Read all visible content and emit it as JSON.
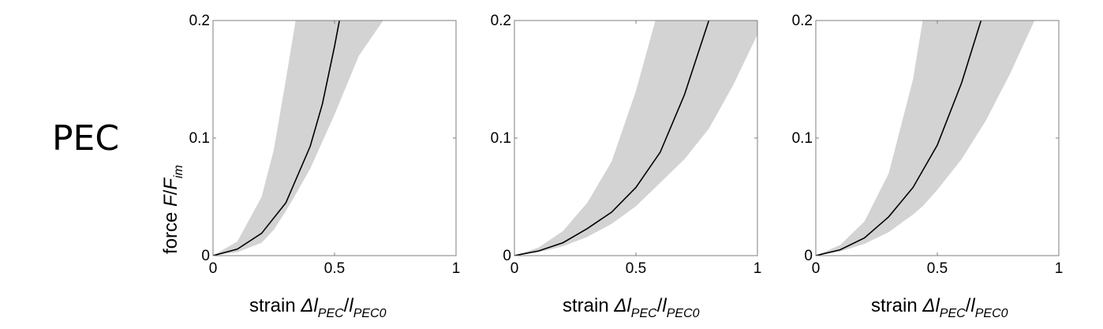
{
  "row_label": "PEC",
  "ylabel": {
    "prefix": "force ",
    "var": "F",
    "slash": "/",
    "var2": "F",
    "sub": "im"
  },
  "xlabel": {
    "prefix": "strain ",
    "var": "Δl",
    "sub": "PEC",
    "slash": "/",
    "var2": "l",
    "sub2": "PEC0"
  },
  "chart_data": [
    {
      "type": "line",
      "xlim": [
        0,
        1
      ],
      "ylim": [
        0,
        0.2
      ],
      "xticks": [
        "0",
        "0.5",
        "1"
      ],
      "yticks": [
        "0",
        "0.1",
        "0.2"
      ],
      "band_color": "#d3d3d3",
      "line_color": "#000000",
      "series": [
        {
          "x": [
            0,
            0.1,
            0.2,
            0.3,
            0.4,
            0.45,
            0.5,
            0.52
          ],
          "values": [
            0,
            0.0055,
            0.019,
            0.045,
            0.093,
            0.129,
            0.178,
            0.2
          ]
        }
      ],
      "band": {
        "x": [
          0,
          0.1,
          0.2,
          0.25,
          0.3,
          0.34,
          0.4,
          0.5,
          0.6,
          0.65,
          0.7
        ],
        "upper": [
          0,
          0.012,
          0.05,
          0.09,
          0.15,
          0.2,
          0.2,
          0.2,
          0.2,
          0.2,
          0.2
        ],
        "lower": [
          0,
          0.0028,
          0.011,
          0.022,
          0.038,
          0.052,
          0.074,
          0.12,
          0.17,
          0.185,
          0.2
        ]
      }
    },
    {
      "type": "line",
      "xlim": [
        0,
        1
      ],
      "ylim": [
        0,
        0.2
      ],
      "xticks": [
        "0",
        "0.5",
        "1"
      ],
      "yticks": [
        "0",
        "0.1",
        "0.2"
      ],
      "band_color": "#d3d3d3",
      "line_color": "#000000",
      "series": [
        {
          "x": [
            0,
            0.1,
            0.2,
            0.3,
            0.4,
            0.5,
            0.6,
            0.7,
            0.8
          ],
          "values": [
            0,
            0.004,
            0.011,
            0.023,
            0.037,
            0.058,
            0.088,
            0.137,
            0.2
          ]
        }
      ],
      "band": {
        "x": [
          0,
          0.1,
          0.2,
          0.3,
          0.4,
          0.5,
          0.58,
          0.7,
          0.8,
          0.9,
          1.0
        ],
        "upper": [
          0,
          0.007,
          0.021,
          0.045,
          0.08,
          0.14,
          0.2,
          0.2,
          0.2,
          0.2,
          0.2
        ],
        "lower": [
          0,
          0.0028,
          0.008,
          0.016,
          0.027,
          0.042,
          0.058,
          0.082,
          0.108,
          0.145,
          0.188
        ]
      }
    },
    {
      "type": "line",
      "xlim": [
        0,
        1
      ],
      "ylim": [
        0,
        0.2
      ],
      "xticks": [
        "0",
        "0.5",
        "1"
      ],
      "yticks": [
        "0",
        "0.1",
        "0.2"
      ],
      "band_color": "#d3d3d3",
      "line_color": "#000000",
      "series": [
        {
          "x": [
            0,
            0.1,
            0.2,
            0.3,
            0.4,
            0.5,
            0.6,
            0.68
          ],
          "values": [
            0,
            0.005,
            0.015,
            0.033,
            0.058,
            0.094,
            0.147,
            0.2
          ]
        }
      ],
      "band": {
        "x": [
          0,
          0.1,
          0.2,
          0.3,
          0.4,
          0.44,
          0.5,
          0.6,
          0.7,
          0.8,
          0.9
        ],
        "upper": [
          0,
          0.009,
          0.029,
          0.07,
          0.15,
          0.2,
          0.2,
          0.2,
          0.2,
          0.2,
          0.2
        ],
        "lower": [
          0,
          0.0035,
          0.01,
          0.02,
          0.035,
          0.042,
          0.056,
          0.082,
          0.115,
          0.155,
          0.2
        ]
      }
    }
  ]
}
